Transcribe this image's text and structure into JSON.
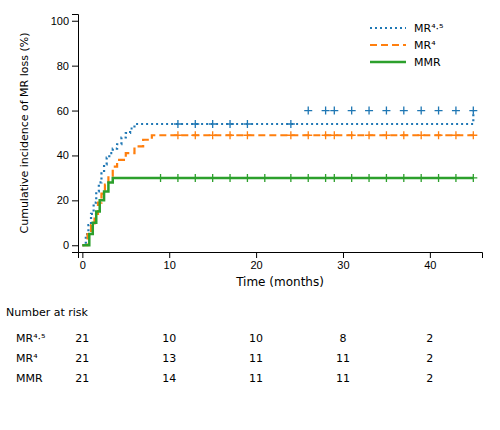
{
  "chart_data": {
    "type": "step",
    "xlabel": "Time (months)",
    "ylabel": "Cumulative incidence of MR loss (%)",
    "xlim": [
      -0.5,
      46
    ],
    "ylim": [
      -3,
      103
    ],
    "xticks": [
      0,
      10,
      20,
      30,
      40
    ],
    "yticks": [
      0,
      20,
      40,
      60,
      80,
      100
    ],
    "legend": "upper right",
    "series": [
      {
        "name": "MR⁴·⁵",
        "line_style": "dotted",
        "x": [
          0,
          0.4,
          0.7,
          1.0,
          1.3,
          1.6,
          1.9,
          2.2,
          2.5,
          2.8,
          3.1,
          3.5,
          4.0,
          4.5,
          5.0,
          5.5,
          6.0,
          7.0,
          8.0,
          9.0,
          10.0,
          25.0,
          45.0
        ],
        "values": [
          0,
          5,
          9,
          14,
          19,
          24,
          28,
          32,
          36,
          39,
          41,
          43,
          45,
          48,
          50,
          52,
          54,
          54,
          54,
          54,
          54,
          54,
          60
        ],
        "censor_x": [
          11,
          13,
          15,
          17,
          19,
          24,
          26,
          28,
          29,
          31,
          33,
          35,
          37,
          39,
          41,
          43,
          45
        ],
        "censor_y": [
          54,
          54,
          54,
          54,
          54,
          54,
          60,
          60,
          60,
          60,
          60,
          60,
          60,
          60,
          60,
          60,
          60
        ]
      },
      {
        "name": "MR⁴",
        "line_style": "dashed",
        "x": [
          0,
          0.6,
          1.0,
          1.4,
          1.8,
          2.2,
          2.6,
          3.0,
          3.5,
          4.0,
          5.0,
          6.0,
          7.0,
          8.0,
          9.0,
          10.0,
          45.0
        ],
        "values": [
          0,
          5,
          9,
          14,
          19,
          23,
          27,
          31,
          35,
          38,
          41,
          44,
          47,
          49,
          49,
          49,
          49
        ],
        "censor_x": [
          11,
          13,
          15,
          17,
          19,
          24,
          26,
          28,
          29,
          31,
          33,
          35,
          37,
          39,
          41,
          43,
          45
        ],
        "censor_y": [
          49,
          49,
          49,
          49,
          49,
          49,
          49,
          49,
          49,
          49,
          49,
          49,
          49,
          49,
          49,
          49,
          49
        ]
      },
      {
        "name": "MMR",
        "line_style": "solid",
        "x": [
          0,
          0.8,
          1.2,
          1.6,
          2.0,
          2.5,
          3.0,
          3.5,
          4.0,
          45.0
        ],
        "values": [
          0,
          5,
          10,
          15,
          20,
          24,
          28,
          30,
          30,
          30
        ],
        "censor_x": [
          9,
          11,
          13,
          15,
          17,
          19,
          21,
          24,
          26,
          28,
          29,
          31,
          33,
          35,
          37,
          39,
          41,
          43,
          45
        ],
        "censor_y": [
          30,
          30,
          30,
          30,
          30,
          30,
          30,
          30,
          30,
          30,
          30,
          30,
          30,
          30,
          30,
          30,
          30,
          30,
          30
        ]
      }
    ],
    "risk_table": {
      "title": "Number at risk",
      "times": [
        0,
        10,
        20,
        30,
        40
      ],
      "rows": [
        {
          "name": "MR⁴·⁵",
          "values": [
            21,
            10,
            10,
            8,
            2
          ]
        },
        {
          "name": "MR⁴",
          "values": [
            21,
            13,
            11,
            11,
            2
          ]
        },
        {
          "name": "MMR",
          "values": [
            21,
            14,
            11,
            11,
            2
          ]
        }
      ]
    }
  }
}
